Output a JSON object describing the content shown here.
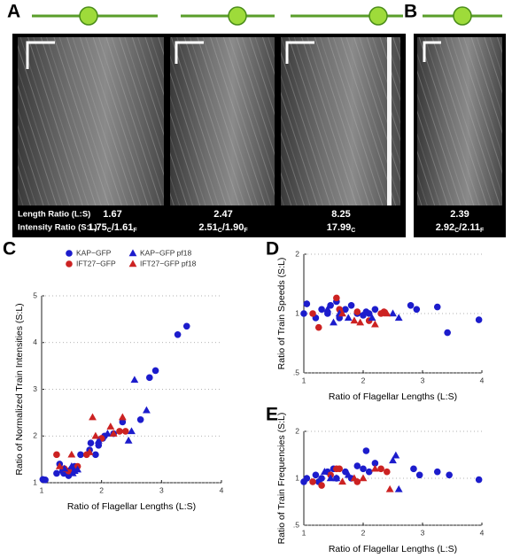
{
  "panel_labels": [
    "A",
    "B",
    "C",
    "D",
    "E"
  ],
  "kymographs": {
    "row_labels": [
      "Length Ratio (L:S)",
      "Intensity Ratio (S:L)"
    ],
    "columns": [
      {
        "length_ratio": "1.67",
        "intensity": [
          {
            "main": "1.75",
            "sub": "C"
          },
          {
            "main": "/1.61",
            "sub": "F"
          }
        ]
      },
      {
        "length_ratio": "2.47",
        "intensity": [
          {
            "main": "2.51",
            "sub": "C"
          },
          {
            "main": "/1.90",
            "sub": "F"
          }
        ]
      },
      {
        "length_ratio": "8.25",
        "intensity": [
          {
            "main": "17.99",
            "sub": "C"
          }
        ]
      },
      {
        "length_ratio": "2.39",
        "intensity": [
          {
            "main": "2.92",
            "sub": "C"
          },
          {
            "main": "/2.11",
            "sub": "F"
          }
        ]
      }
    ]
  },
  "chart_data": [
    {
      "type": "scatter",
      "xlabel": "Ratio of Flagellar Lengths (L:S)",
      "ylabel": "Ratio of Normalized Train Intensities (S:L)",
      "xlim": [
        1,
        4
      ],
      "xticks": [
        1,
        2,
        3,
        4
      ],
      "ylim": [
        1,
        5
      ],
      "yticks": [
        1,
        2,
        3,
        4,
        5
      ],
      "ylog": false,
      "grid": true,
      "legend": true,
      "series": [
        {
          "name": "KAP−GFP",
          "color": "#1c1ccc",
          "marker": "circle",
          "x": [
            1.02,
            1.06,
            1.25,
            1.3,
            1.37,
            1.45,
            1.5,
            1.55,
            1.65,
            1.8,
            1.82,
            1.9,
            1.95,
            2.02,
            2.05,
            2.2,
            2.35,
            2.65,
            2.8,
            2.9,
            3.27,
            3.42,
            1.35,
            1.45
          ],
          "values": [
            1.07,
            1.06,
            1.2,
            1.4,
            1.2,
            1.2,
            1.3,
            1.35,
            1.6,
            1.7,
            1.85,
            1.6,
            1.8,
            1.95,
            2.0,
            2.05,
            2.3,
            2.35,
            3.25,
            3.4,
            4.17,
            4.35,
            1.25,
            1.15
          ]
        },
        {
          "name": "IFT27−GFP",
          "color": "#cc2222",
          "marker": "circle",
          "x": [
            1.25,
            1.38,
            1.45,
            1.6,
            1.75,
            2.3,
            2.4,
            2.0
          ],
          "values": [
            1.6,
            1.3,
            1.25,
            1.35,
            1.6,
            2.1,
            2.1,
            1.95
          ]
        },
        {
          "name": "KAP−GFP pf18",
          "color": "#1c1ccc",
          "marker": "triangle",
          "x": [
            1.38,
            1.5,
            1.52,
            1.55,
            1.6,
            1.95,
            2.1,
            2.45,
            2.55,
            2.75,
            2.5
          ],
          "values": [
            1.3,
            1.35,
            1.2,
            1.25,
            1.28,
            1.9,
            2.05,
            1.9,
            3.2,
            2.55,
            2.1
          ]
        },
        {
          "name": "IFT27−GFP pf18",
          "color": "#cc2222",
          "marker": "triangle",
          "x": [
            1.3,
            1.5,
            1.85,
            1.8,
            2.15,
            2.2,
            2.35,
            1.9
          ],
          "values": [
            1.35,
            1.6,
            2.4,
            1.65,
            2.2,
            2.05,
            2.4,
            2.0
          ]
        }
      ]
    },
    {
      "type": "scatter",
      "xlabel": "Ratio of Flagellar Lengths (L:S)",
      "ylabel": "Ratio of Train Speeds (S:L)",
      "xlim": [
        1,
        4
      ],
      "xticks": [
        1,
        2,
        3,
        4
      ],
      "ylim": [
        0.5,
        2
      ],
      "yticks": [
        {
          "value": 0.5,
          "label": ".5"
        },
        1,
        2
      ],
      "ylog": true,
      "grid": true,
      "legend": false,
      "series": [
        {
          "color": "#1c1ccc",
          "marker": "circle",
          "x": [
            1.0,
            1.2,
            1.3,
            1.4,
            1.45,
            1.55,
            1.6,
            1.7,
            1.8,
            1.9,
            2.0,
            2.05,
            2.1,
            2.2,
            2.8,
            2.9,
            3.25,
            3.42,
            3.95,
            1.05
          ],
          "values": [
            1.0,
            0.95,
            1.05,
            1.0,
            1.1,
            1.15,
            0.95,
            1.05,
            1.1,
            1.0,
            0.98,
            1.02,
            1.0,
            1.05,
            1.1,
            1.05,
            1.08,
            0.8,
            0.93,
            1.12
          ]
        },
        {
          "color": "#cc2222",
          "marker": "circle",
          "x": [
            1.15,
            1.25,
            1.55,
            1.6,
            1.9,
            2.3,
            2.35,
            2.1
          ],
          "values": [
            1.0,
            0.85,
            1.2,
            1.05,
            1.02,
            1.0,
            1.02,
            0.92
          ]
        },
        {
          "color": "#1c1ccc",
          "marker": "triangle",
          "x": [
            1.5,
            1.6,
            1.75,
            2.5,
            2.6,
            1.4,
            2.15
          ],
          "values": [
            0.9,
            1.0,
            0.95,
            1.0,
            0.95,
            1.05,
            0.95
          ]
        },
        {
          "color": "#cc2222",
          "marker": "triangle",
          "x": [
            1.85,
            2.2,
            2.4,
            1.65,
            1.95
          ],
          "values": [
            0.92,
            0.88,
            1.0,
            1.0,
            0.9
          ]
        }
      ]
    },
    {
      "type": "scatter",
      "xlabel": "Ratio of Flagellar Lengths (L:S)",
      "ylabel": "Ratio of Train Frequencies (S:L)",
      "xlim": [
        1,
        4
      ],
      "xticks": [
        1,
        2,
        3,
        4
      ],
      "ylim": [
        0.5,
        2
      ],
      "yticks": [
        {
          "value": 0.5,
          "label": ".5"
        },
        1,
        2
      ],
      "ylog": true,
      "grid": true,
      "legend": false,
      "series": [
        {
          "color": "#1c1ccc",
          "marker": "circle",
          "x": [
            1.0,
            1.05,
            1.2,
            1.3,
            1.4,
            1.5,
            1.55,
            1.7,
            1.8,
            1.9,
            2.0,
            2.05,
            2.1,
            2.2,
            2.85,
            2.95,
            3.25,
            3.45,
            3.95,
            1.25
          ],
          "values": [
            0.95,
            1.0,
            1.05,
            1.0,
            1.1,
            1.15,
            1.0,
            1.1,
            1.0,
            1.2,
            1.15,
            1.5,
            1.1,
            1.25,
            1.15,
            1.05,
            1.1,
            1.05,
            0.98,
            0.95
          ]
        },
        {
          "color": "#cc2222",
          "marker": "circle",
          "x": [
            1.15,
            1.3,
            1.55,
            1.6,
            2.3,
            2.4,
            1.9,
            1.45
          ],
          "values": [
            0.95,
            0.9,
            1.15,
            1.15,
            1.15,
            1.1,
            0.95,
            1.05
          ]
        },
        {
          "color": "#1c1ccc",
          "marker": "triangle",
          "x": [
            1.45,
            1.55,
            2.5,
            2.55,
            2.6,
            1.75,
            1.35
          ],
          "values": [
            1.0,
            1.0,
            1.3,
            1.4,
            0.85,
            1.05,
            1.1
          ]
        },
        {
          "color": "#cc2222",
          "marker": "triangle",
          "x": [
            1.85,
            2.2,
            2.45,
            1.65,
            2.0
          ],
          "values": [
            1.0,
            1.15,
            0.85,
            0.95,
            1.0
          ]
        }
      ]
    }
  ]
}
